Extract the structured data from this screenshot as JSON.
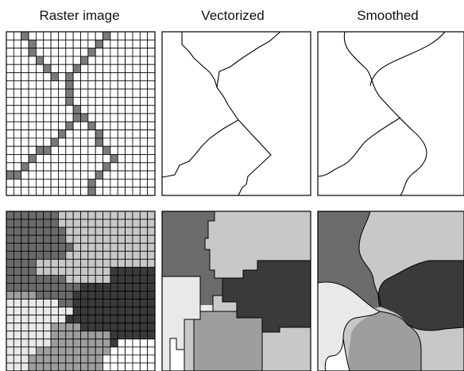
{
  "titles": {
    "raster": "Raster image",
    "vectorized": "Vectorized",
    "smoothed": "Smoothed"
  },
  "grid": {
    "rows": 20,
    "cols": 20
  },
  "colors": {
    "line": "#000000",
    "grid_line": "#000000",
    "line_cell": "#7a7a7a",
    "zone_white": "#ffffff",
    "zone_light": "#e9e9e9",
    "zone_mid_light": "#c8c8c8",
    "zone_mid": "#9e9e9e",
    "zone_dark": "#6b6b6b",
    "zone_darkest": "#3a3a3a"
  },
  "raster_line_cells": [
    [
      0,
      2
    ],
    [
      0,
      13
    ],
    [
      1,
      3
    ],
    [
      1,
      12
    ],
    [
      2,
      3
    ],
    [
      2,
      11
    ],
    [
      3,
      4
    ],
    [
      3,
      10
    ],
    [
      4,
      5
    ],
    [
      4,
      9
    ],
    [
      5,
      6
    ],
    [
      5,
      8
    ],
    [
      6,
      8
    ],
    [
      7,
      8
    ],
    [
      8,
      8
    ],
    [
      9,
      9
    ],
    [
      10,
      9
    ],
    [
      10,
      10
    ],
    [
      11,
      8
    ],
    [
      11,
      11
    ],
    [
      12,
      7
    ],
    [
      12,
      12
    ],
    [
      13,
      6
    ],
    [
      13,
      12
    ],
    [
      14,
      4
    ],
    [
      14,
      5
    ],
    [
      14,
      13
    ],
    [
      15,
      3
    ],
    [
      15,
      14
    ],
    [
      16,
      2
    ],
    [
      16,
      13
    ],
    [
      17,
      0
    ],
    [
      17,
      1
    ],
    [
      17,
      12
    ],
    [
      18,
      11
    ],
    [
      19,
      11
    ]
  ],
  "raster_zones": [
    "44444443333333333333",
    "44444443333333333333",
    "44444444333333333333",
    "44444444333333333333",
    "44444444433333333333",
    "44444444333333333333",
    "44443333333333333333",
    "44443333333333555555",
    "44444444333333555555",
    "44444444445555555555",
    "22224444455555555555",
    "11111114455555555555",
    "11111111155555555555",
    "11111111555555555555",
    "11111122225555555555",
    "11111122222222555555",
    "11111122222222500000",
    "11112222222222000000",
    "11122222222220000000",
    "11122222222220000000"
  ]
}
